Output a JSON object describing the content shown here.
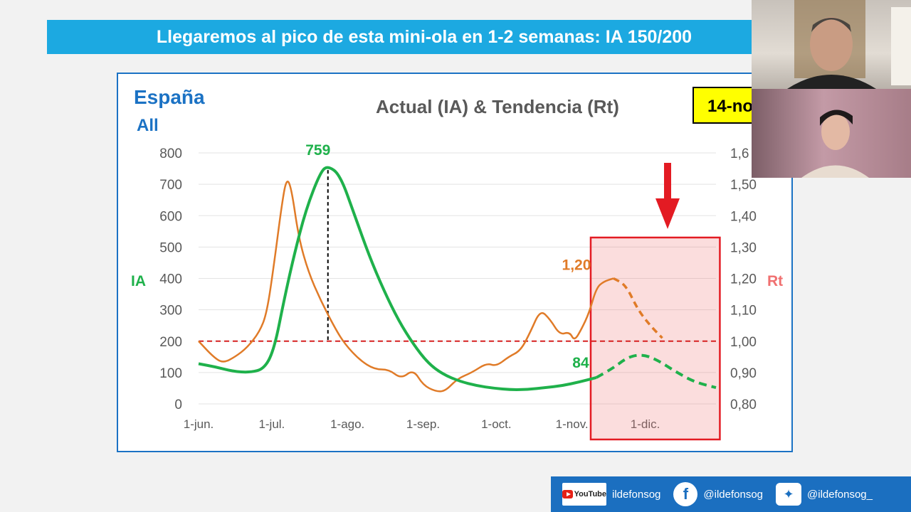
{
  "slide": {
    "title": "Llegaremos al pico de esta mini-ola en 1-2 semanas: IA 150/200"
  },
  "chart_data": {
    "type": "line",
    "region": "España",
    "subregion": "All",
    "title": "Actual (IA) & Tendencia (Rt)",
    "date_badge": "14-no",
    "x_categories": [
      "1-jun.",
      "1-jul.",
      "1-ago.",
      "1-sep.",
      "1-oct.",
      "1-nov.",
      "1-dic."
    ],
    "ylabel_left": "IA",
    "ylabel_right": "Rt",
    "ylim_left": [
      0,
      800
    ],
    "yticks_left": [
      "0",
      "100",
      "200",
      "300",
      "400",
      "500",
      "600",
      "700",
      "800"
    ],
    "ylim_right": [
      0.8,
      1.6
    ],
    "yticks_right": [
      "0,80",
      "0,90",
      "1,00",
      "1,10",
      "1,20",
      "1,30",
      "1,40",
      "1,50",
      "1,6"
    ],
    "reference_line": {
      "axis": "right",
      "value": 1.0
    },
    "annotations": {
      "ia_peak": "759",
      "ia_current": "84",
      "rt_current": "1,20"
    },
    "series": [
      {
        "name": "IA",
        "axis": "left",
        "color": "#1fb14b",
        "actual": [
          [
            0,
            128
          ],
          [
            7,
            118
          ],
          [
            14,
            104
          ],
          [
            21,
            100
          ],
          [
            27,
            112
          ],
          [
            31,
            175
          ],
          [
            35,
            330
          ],
          [
            39,
            470
          ],
          [
            44,
            620
          ],
          [
            50,
            740
          ],
          [
            53,
            759
          ],
          [
            58,
            730
          ],
          [
            64,
            600
          ],
          [
            70,
            470
          ],
          [
            76,
            360
          ],
          [
            82,
            265
          ],
          [
            88,
            190
          ],
          [
            94,
            130
          ],
          [
            100,
            95
          ],
          [
            107,
            72
          ],
          [
            114,
            58
          ],
          [
            121,
            50
          ],
          [
            128,
            45
          ],
          [
            135,
            46
          ],
          [
            142,
            52
          ],
          [
            149,
            58
          ],
          [
            156,
            70
          ],
          [
            163,
            84
          ]
        ],
        "forecast": [
          [
            163,
            84
          ],
          [
            170,
            115
          ],
          [
            176,
            150
          ],
          [
            182,
            158
          ],
          [
            188,
            140
          ],
          [
            195,
            105
          ],
          [
            203,
            70
          ],
          [
            212,
            52
          ]
        ]
      },
      {
        "name": "Rt",
        "axis": "right",
        "color": "#e07b28",
        "actual": [
          [
            0,
            1.0
          ],
          [
            6,
            0.95
          ],
          [
            10,
            0.93
          ],
          [
            15,
            0.95
          ],
          [
            20,
            0.98
          ],
          [
            25,
            1.03
          ],
          [
            28,
            1.09
          ],
          [
            31,
            1.25
          ],
          [
            34,
            1.43
          ],
          [
            36,
            1.52
          ],
          [
            38,
            1.49
          ],
          [
            41,
            1.33
          ],
          [
            45,
            1.22
          ],
          [
            50,
            1.13
          ],
          [
            56,
            1.04
          ],
          [
            60,
            0.99
          ],
          [
            66,
            0.94
          ],
          [
            72,
            0.91
          ],
          [
            78,
            0.91
          ],
          [
            83,
            0.88
          ],
          [
            88,
            0.91
          ],
          [
            92,
            0.86
          ],
          [
            97,
            0.84
          ],
          [
            101,
            0.84
          ],
          [
            106,
            0.88
          ],
          [
            112,
            0.9
          ],
          [
            118,
            0.93
          ],
          [
            122,
            0.92
          ],
          [
            127,
            0.95
          ],
          [
            132,
            0.97
          ],
          [
            136,
            1.03
          ],
          [
            140,
            1.1
          ],
          [
            144,
            1.07
          ],
          [
            148,
            1.02
          ],
          [
            152,
            1.03
          ],
          [
            154,
            1.0
          ],
          [
            157,
            1.04
          ],
          [
            160,
            1.09
          ],
          [
            163,
            1.17
          ],
          [
            166,
            1.19
          ],
          [
            170,
            1.2
          ]
        ],
        "forecast": [
          [
            170,
            1.2
          ],
          [
            175,
            1.18
          ],
          [
            180,
            1.1
          ],
          [
            185,
            1.05
          ],
          [
            190,
            1.01
          ]
        ]
      }
    ],
    "forecast_region": {
      "from_day": 163,
      "to_day": 213
    },
    "x_day_of_category": [
      0,
      30,
      61,
      92,
      122,
      153,
      183
    ]
  },
  "footer": {
    "youtube_handle": "ildefonsog",
    "facebook_handle": "@ildefonsog",
    "twitter_handle": "@ildefonsog_"
  },
  "icons": [
    "youtube-icon",
    "facebook-icon",
    "twitter-icon",
    "down-arrow-icon"
  ]
}
